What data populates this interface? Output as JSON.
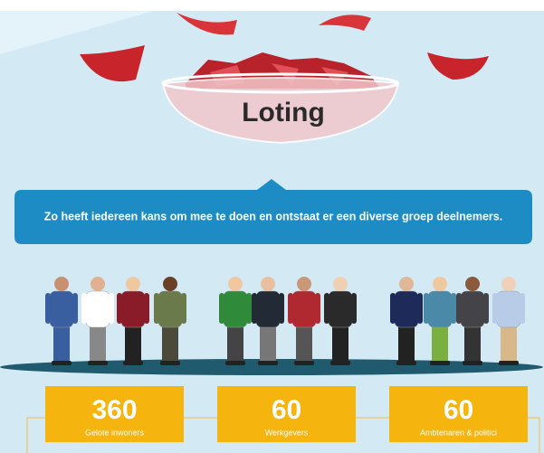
{
  "title": "Loting",
  "message": "Zo heeft iedereen kans om mee te doen en ontstaat er een diverse groep deelnemers.",
  "groups": [
    {
      "number": 360,
      "label": "Gelote inwoners"
    },
    {
      "number": 60,
      "label": "Werkgevers"
    },
    {
      "number": 60,
      "label": "Ambtenaren & politici"
    }
  ]
}
